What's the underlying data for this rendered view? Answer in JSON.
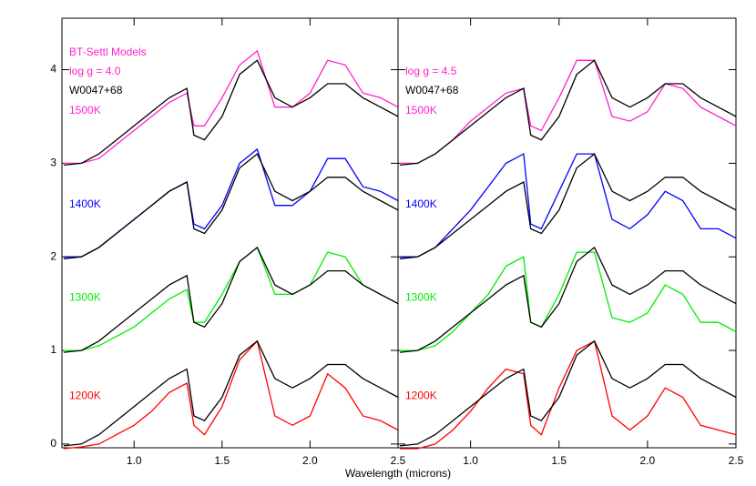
{
  "chart_data": [
    {
      "type": "line",
      "xlabel": "Wavelength (microns)",
      "xlim": [
        0.59,
        2.5
      ],
      "ylim": [
        -0.04,
        4.55
      ],
      "xticks": [
        {
          "value": 1,
          "label": "1.0"
        },
        1.5,
        {
          "value": 2,
          "label": "2.0"
        },
        2.5
      ],
      "yticks": [
        0,
        1,
        2,
        3,
        4
      ],
      "show_ytick_labels": true,
      "annotations": [
        {
          "text": "BT-Settl Models",
          "color": "#ff22cc"
        },
        {
          "text": "log g = 4.0",
          "color": "#ff22cc"
        },
        {
          "text": "W0047+68",
          "color": "#000000"
        }
      ],
      "x": [
        0.6,
        0.7,
        0.8,
        0.9,
        1.0,
        1.1,
        1.2,
        1.3,
        1.34,
        1.4,
        1.5,
        1.6,
        1.7,
        1.8,
        1.9,
        2.0,
        2.1,
        2.2,
        2.3,
        2.4,
        2.5
      ],
      "series": [
        {
          "name": "1200K",
          "color": "#ff0000",
          "values": [
            -0.05,
            -0.03,
            0.0,
            0.1,
            0.2,
            0.35,
            0.55,
            0.65,
            0.2,
            0.1,
            0.4,
            0.9,
            1.1,
            0.3,
            0.2,
            0.3,
            0.75,
            0.6,
            0.3,
            0.25,
            0.15
          ]
        },
        {
          "name": "1300K",
          "color": "#00ee00",
          "values": [
            1.0,
            1.0,
            1.05,
            1.15,
            1.25,
            1.4,
            1.55,
            1.65,
            1.3,
            1.3,
            1.6,
            1.95,
            2.1,
            1.6,
            1.6,
            1.7,
            2.05,
            2.0,
            1.7,
            1.6,
            1.5
          ]
        },
        {
          "name": "1400K",
          "color": "#0000ff",
          "values": [
            2.0,
            2.0,
            2.1,
            2.25,
            2.4,
            2.55,
            2.7,
            2.8,
            2.35,
            2.3,
            2.55,
            3.0,
            3.15,
            2.55,
            2.55,
            2.7,
            3.05,
            3.05,
            2.75,
            2.7,
            2.6
          ]
        },
        {
          "name": "1500K",
          "color": "#ff22cc",
          "values": [
            3.0,
            3.0,
            3.05,
            3.2,
            3.35,
            3.5,
            3.65,
            3.75,
            3.4,
            3.4,
            3.7,
            4.05,
            4.2,
            3.6,
            3.6,
            3.75,
            4.1,
            4.05,
            3.75,
            3.7,
            3.6
          ]
        },
        {
          "color": "#000000",
          "values": [
            -0.02,
            0.0,
            0.1,
            0.25,
            0.4,
            0.55,
            0.7,
            0.8,
            0.3,
            0.25,
            0.5,
            0.95,
            1.1,
            0.7,
            0.6,
            0.7,
            0.85,
            0.85,
            0.7,
            0.6,
            0.5
          ]
        },
        {
          "color": "#000000",
          "values": [
            0.98,
            1.0,
            1.1,
            1.25,
            1.4,
            1.55,
            1.7,
            1.8,
            1.3,
            1.25,
            1.5,
            1.95,
            2.1,
            1.7,
            1.6,
            1.7,
            1.85,
            1.85,
            1.7,
            1.6,
            1.5
          ]
        },
        {
          "color": "#000000",
          "values": [
            1.98,
            2.0,
            2.1,
            2.25,
            2.4,
            2.55,
            2.7,
            2.8,
            2.3,
            2.25,
            2.5,
            2.95,
            3.1,
            2.7,
            2.6,
            2.7,
            2.85,
            2.85,
            2.7,
            2.6,
            2.5
          ]
        },
        {
          "color": "#000000",
          "values": [
            2.98,
            3.0,
            3.1,
            3.25,
            3.4,
            3.55,
            3.7,
            3.8,
            3.3,
            3.25,
            3.5,
            3.95,
            4.1,
            3.7,
            3.6,
            3.7,
            3.85,
            3.85,
            3.7,
            3.6,
            3.5
          ]
        }
      ]
    },
    {
      "type": "line",
      "xlim": [
        0.59,
        2.5
      ],
      "ylim": [
        -0.04,
        4.55
      ],
      "xticks": [
        {
          "value": 1,
          "label": "1.0"
        },
        1.5,
        {
          "value": 2,
          "label": "2.0"
        },
        2.5
      ],
      "yticks": [
        0,
        1,
        2,
        3,
        4
      ],
      "show_ytick_labels": false,
      "annotations": [
        {
          "text": "log g = 4.5",
          "color": "#ff22cc"
        },
        {
          "text": "W0047+68",
          "color": "#000000"
        }
      ],
      "x": [
        0.6,
        0.7,
        0.8,
        0.9,
        1.0,
        1.1,
        1.2,
        1.3,
        1.34,
        1.4,
        1.5,
        1.6,
        1.7,
        1.8,
        1.9,
        2.0,
        2.1,
        2.2,
        2.3,
        2.4,
        2.5
      ],
      "series": [
        {
          "name": "1200K",
          "color": "#ff0000",
          "values": [
            -0.05,
            -0.05,
            0.0,
            0.15,
            0.35,
            0.6,
            0.8,
            0.75,
            0.2,
            0.1,
            0.6,
            1.0,
            1.1,
            0.3,
            0.15,
            0.3,
            0.6,
            0.5,
            0.2,
            0.15,
            0.1
          ]
        },
        {
          "name": "1300K",
          "color": "#00ee00",
          "values": [
            1.0,
            1.0,
            1.05,
            1.2,
            1.4,
            1.6,
            1.9,
            2.0,
            1.3,
            1.25,
            1.6,
            2.05,
            2.05,
            1.35,
            1.3,
            1.4,
            1.7,
            1.6,
            1.3,
            1.3,
            1.2
          ]
        },
        {
          "name": "1400K",
          "color": "#0000ff",
          "values": [
            2.0,
            2.0,
            2.1,
            2.3,
            2.5,
            2.75,
            3.0,
            3.1,
            2.35,
            2.3,
            2.7,
            3.1,
            3.1,
            2.4,
            2.3,
            2.45,
            2.7,
            2.6,
            2.3,
            2.3,
            2.2
          ]
        },
        {
          "name": "1500K",
          "color": "#ff22cc",
          "values": [
            3.0,
            3.0,
            3.1,
            3.25,
            3.45,
            3.6,
            3.75,
            3.8,
            3.4,
            3.35,
            3.7,
            4.1,
            4.1,
            3.5,
            3.45,
            3.55,
            3.85,
            3.8,
            3.6,
            3.5,
            3.4
          ]
        },
        {
          "color": "#000000",
          "values": [
            -0.02,
            0.0,
            0.1,
            0.25,
            0.4,
            0.55,
            0.7,
            0.8,
            0.3,
            0.25,
            0.5,
            0.95,
            1.1,
            0.7,
            0.6,
            0.7,
            0.85,
            0.85,
            0.7,
            0.6,
            0.5
          ]
        },
        {
          "color": "#000000",
          "values": [
            0.98,
            1.0,
            1.1,
            1.25,
            1.4,
            1.55,
            1.7,
            1.8,
            1.3,
            1.25,
            1.5,
            1.95,
            2.1,
            1.7,
            1.6,
            1.7,
            1.85,
            1.85,
            1.7,
            1.6,
            1.5
          ]
        },
        {
          "color": "#000000",
          "values": [
            1.98,
            2.0,
            2.1,
            2.25,
            2.4,
            2.55,
            2.7,
            2.8,
            2.3,
            2.25,
            2.5,
            2.95,
            3.1,
            2.7,
            2.6,
            2.7,
            2.85,
            2.85,
            2.7,
            2.6,
            2.5
          ]
        },
        {
          "color": "#000000",
          "values": [
            2.98,
            3.0,
            3.1,
            3.25,
            3.4,
            3.55,
            3.7,
            3.8,
            3.3,
            3.25,
            3.5,
            3.95,
            4.1,
            3.7,
            3.6,
            3.7,
            3.85,
            3.85,
            3.7,
            3.6,
            3.5
          ]
        }
      ]
    }
  ]
}
